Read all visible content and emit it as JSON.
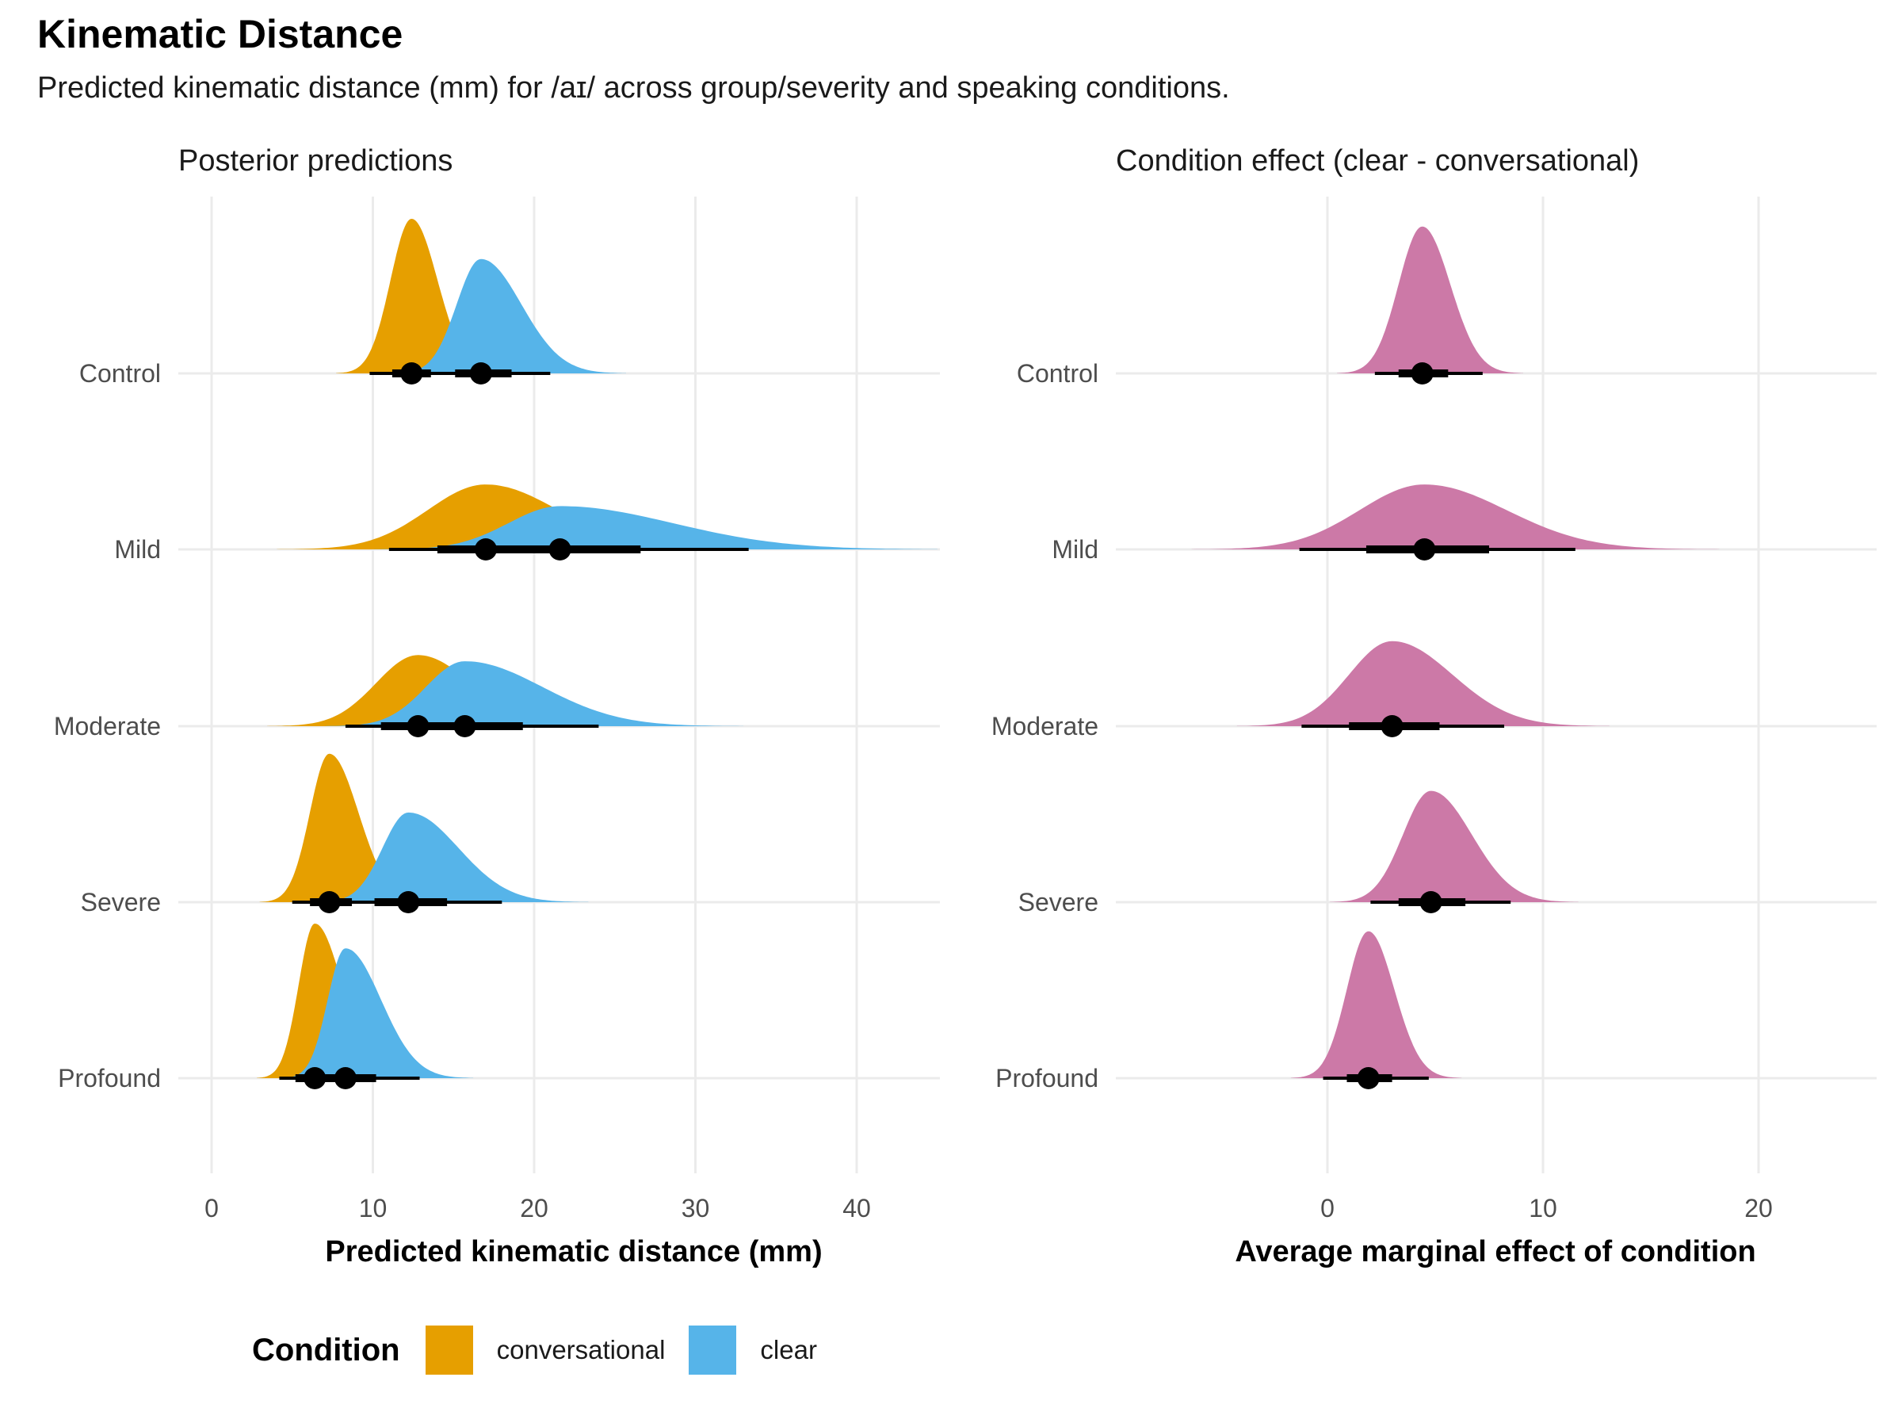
{
  "title": "Kinematic Distance",
  "subtitle": "Predicted kinematic distance (mm) for /aɪ/ across group/severity and speaking conditions.",
  "legend": {
    "title": "Condition",
    "items": [
      {
        "label": "conversational",
        "color": "#E69F00"
      },
      {
        "label": "clear",
        "color": "#56B4E9"
      }
    ]
  },
  "chart_data": [
    {
      "type": "area",
      "subtype": "ridgeline-density-with-interval",
      "title": "Posterior predictions",
      "xlabel": "Predicted kinematic distance (mm)",
      "ylabel": "",
      "xlim": [
        -2,
        45
      ],
      "x_ticks": [
        0,
        10,
        20,
        30,
        40
      ],
      "categories": [
        "Control",
        "Mild",
        "Moderate",
        "Severe",
        "Profound"
      ],
      "grid": true,
      "legend_position": "bottom",
      "series": [
        {
          "name": "conversational",
          "color": "#E69F00",
          "median": [
            12.4,
            17.0,
            12.8,
            7.3,
            6.4
          ],
          "ci66": [
            [
              11.2,
              13.6
            ],
            [
              14.0,
              20.5
            ],
            [
              10.5,
              15.2
            ],
            [
              6.1,
              8.7
            ],
            [
              5.2,
              7.7
            ]
          ],
          "ci95": [
            [
              9.8,
              15.5
            ],
            [
              11.0,
              26.5
            ],
            [
              8.3,
              19.3
            ],
            [
              5.0,
              10.8
            ],
            [
              4.2,
              10.0
            ]
          ],
          "sd_left": [
            1.3,
            3.6,
            2.6,
            1.2,
            1.0
          ],
          "sd_right": [
            1.6,
            4.5,
            3.3,
            1.8,
            1.7
          ],
          "peak": [
            1.0,
            0.42,
            0.46,
            0.96,
            1.0
          ]
        },
        {
          "name": "clear",
          "color": "#56B4E9",
          "median": [
            16.7,
            21.6,
            15.7,
            12.2,
            8.3
          ],
          "ci66": [
            [
              15.1,
              18.6
            ],
            [
              17.8,
              26.6
            ],
            [
              12.9,
              19.3
            ],
            [
              10.1,
              14.6
            ],
            [
              7.0,
              10.2
            ]
          ],
          "ci95": [
            [
              13.1,
              21.0
            ],
            [
              14.0,
              33.3
            ],
            [
              10.3,
              24.0
            ],
            [
              7.8,
              18.0
            ],
            [
              5.5,
              12.9
            ]
          ],
          "sd_left": [
            1.5,
            3.2,
            2.4,
            1.6,
            1.1
          ],
          "sd_right": [
            2.5,
            7.0,
            4.8,
            3.1,
            2.2
          ],
          "peak": [
            0.74,
            0.28,
            0.42,
            0.58,
            0.84
          ]
        }
      ]
    },
    {
      "type": "area",
      "subtype": "ridgeline-density-with-interval",
      "title": "Condition effect (clear - conversational)",
      "xlabel": "Average marginal effect of condition",
      "ylabel": "",
      "xlim": [
        -10,
        25.5
      ],
      "x_ticks": [
        0,
        10,
        20
      ],
      "categories": [
        "Control",
        "Mild",
        "Moderate",
        "Severe",
        "Profound"
      ],
      "grid": true,
      "series": [
        {
          "name": "",
          "color": "#CC79A7",
          "median": [
            4.4,
            4.5,
            3.0,
            4.8,
            1.9
          ],
          "ci66": [
            [
              3.3,
              5.6
            ],
            [
              1.8,
              7.5
            ],
            [
              1.0,
              5.2
            ],
            [
              3.3,
              6.4
            ],
            [
              0.9,
              3.0
            ]
          ],
          "ci95": [
            [
              2.2,
              7.2
            ],
            [
              -1.3,
              11.5
            ],
            [
              -1.2,
              8.2
            ],
            [
              2.0,
              8.5
            ],
            [
              -0.2,
              4.7
            ]
          ],
          "sd_left": [
            1.1,
            3.0,
            2.0,
            1.3,
            1.0
          ],
          "sd_right": [
            1.3,
            3.8,
            2.8,
            1.9,
            1.2
          ],
          "peak": [
            0.95,
            0.42,
            0.55,
            0.72,
            0.95
          ]
        }
      ]
    }
  ]
}
